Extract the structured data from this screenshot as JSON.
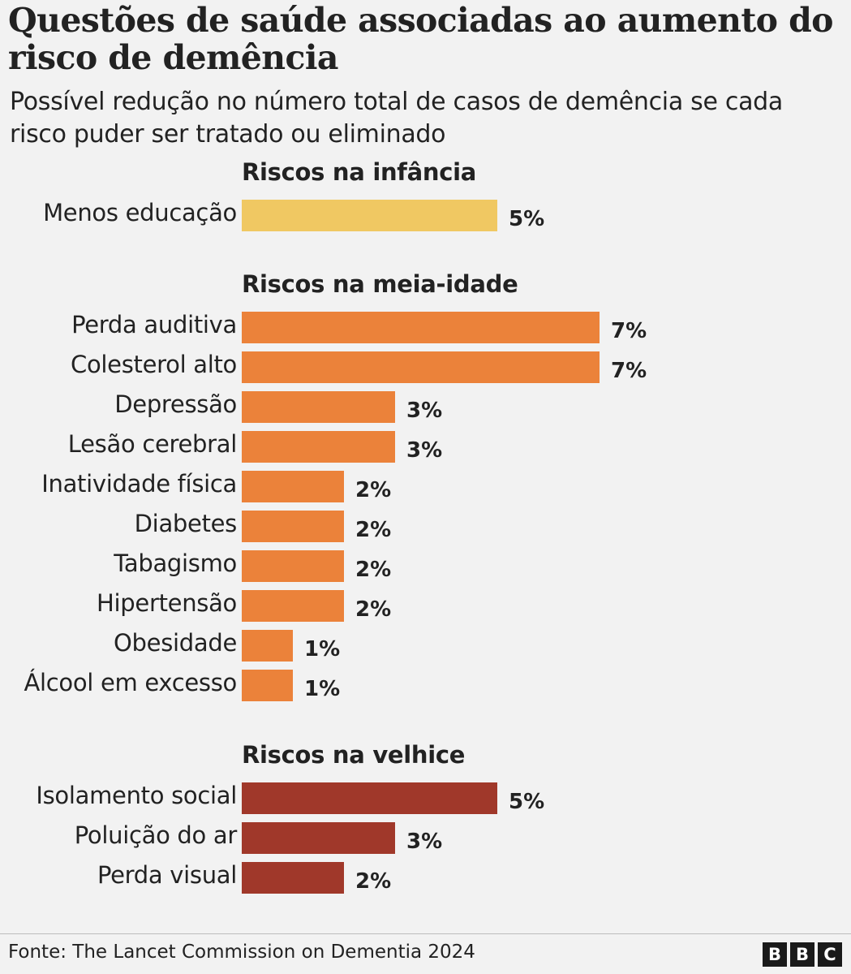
{
  "title": "Questões de saúde associadas ao aumento do risco de demência",
  "subtitle": "Possível redução no número total de casos de demência se cada risco puder ser tratado ou eliminado",
  "source": "Fonte: The Lancet Commission on Dementia 2024",
  "logo": [
    "B",
    "B",
    "C"
  ],
  "chart_data": {
    "type": "bar",
    "orientation": "horizontal",
    "unit": "%",
    "groups": [
      {
        "name": "Riscos na infância",
        "color": "#f0c862",
        "items": [
          {
            "label": "Menos educação",
            "value": 5,
            "value_label": "5%"
          }
        ]
      },
      {
        "name": "Riscos na meia-idade",
        "color": "#eb823a",
        "items": [
          {
            "label": "Perda auditiva",
            "value": 7,
            "value_label": "7%"
          },
          {
            "label": "Colesterol alto",
            "value": 7,
            "value_label": "7%"
          },
          {
            "label": "Depressão",
            "value": 3,
            "value_label": "3%"
          },
          {
            "label": "Lesão cerebral",
            "value": 3,
            "value_label": "3%"
          },
          {
            "label": "Inatividade física",
            "value": 2,
            "value_label": "2%"
          },
          {
            "label": "Diabetes",
            "value": 2,
            "value_label": "2%"
          },
          {
            "label": "Tabagismo",
            "value": 2,
            "value_label": "2%"
          },
          {
            "label": "Hipertensão",
            "value": 2,
            "value_label": "2%"
          },
          {
            "label": "Obesidade",
            "value": 1,
            "value_label": "1%"
          },
          {
            "label": "Álcool em excesso",
            "value": 1,
            "value_label": "1%"
          }
        ]
      },
      {
        "name": "Riscos na velhice",
        "color": "#a0382a",
        "items": [
          {
            "label": "Isolamento social",
            "value": 5,
            "value_label": "5%"
          },
          {
            "label": "Poluição do ar",
            "value": 3,
            "value_label": "3%"
          },
          {
            "label": "Perda visual",
            "value": 2,
            "value_label": "2%"
          }
        ]
      }
    ]
  }
}
